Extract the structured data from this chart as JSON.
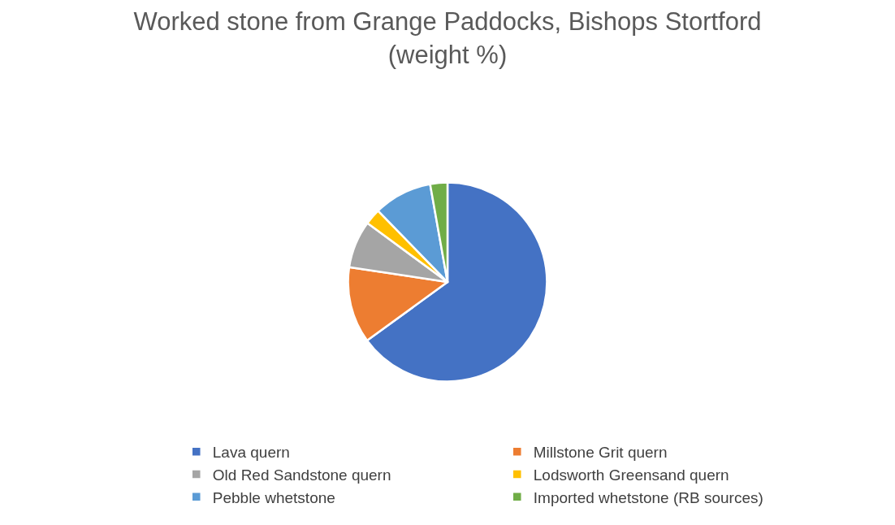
{
  "chart_data": {
    "type": "pie",
    "title": "Worked stone from Grange Paddocks, Bishops Stortford\n(weight %)",
    "categories": [
      "Lava quern",
      "Millstone Grit quern",
      "Old Red Sandstone quern",
      "Lodsworth Greensand quern",
      "Pebble whetstone",
      "Imported whetstone (RB sources)"
    ],
    "values": [
      65,
      12.4,
      7.7,
      2.6,
      9.5,
      2.8
    ],
    "colors": [
      "#4472c4",
      "#ed7d31",
      "#a5a5a5",
      "#ffc000",
      "#5b9bd5",
      "#70ad47"
    ],
    "legend": "bottom"
  }
}
